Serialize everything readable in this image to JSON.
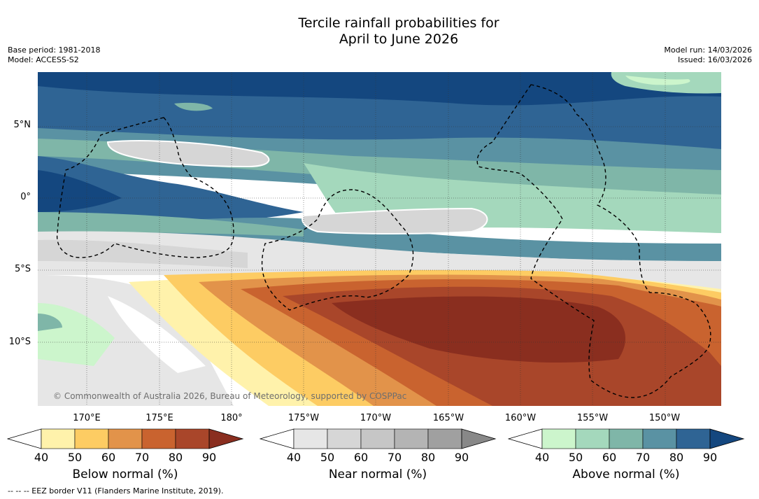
{
  "title": {
    "line1": "Tercile rainfall probabilities for",
    "line2": "April to June 2026"
  },
  "meta": {
    "base_period": "Base period: 1981-2018",
    "model": "Model: ACCESS-S2",
    "model_run": "Model run: 14/03/2026",
    "issued": "Issued: 16/03/2026"
  },
  "lat_labels": [
    "5°N",
    "0°",
    "5°S",
    "10°S"
  ],
  "lon_labels": [
    "170°E",
    "175°E",
    "180°",
    "175°W",
    "170°W",
    "165°W",
    "160°W",
    "155°W",
    "150°W"
  ],
  "copyright": "© Commonwealth of Australia 2026, Bureau of Meteorology, supported by COSPPac",
  "colorbars": [
    {
      "title": "Below normal (%)",
      "ticks": [
        "40",
        "50",
        "60",
        "70",
        "80",
        "90"
      ],
      "colors": [
        "#fff2ab",
        "#fdcc63",
        "#e2934a",
        "#c9632f",
        "#a9462a",
        "#8a2e1f"
      ]
    },
    {
      "title": "Near normal (%)",
      "ticks": [
        "40",
        "50",
        "60",
        "70",
        "80",
        "90"
      ],
      "colors": [
        "#e6e6e6",
        "#d6d6d6",
        "#c6c6c6",
        "#b4b4b4",
        "#a0a0a0",
        "#888888"
      ]
    },
    {
      "title": "Above normal (%)",
      "ticks": [
        "40",
        "50",
        "60",
        "70",
        "80",
        "90"
      ],
      "colors": [
        "#ccf5cc",
        "#a4d8bc",
        "#7fb6a8",
        "#5a92a3",
        "#2f6494",
        "#14477f"
      ]
    }
  ],
  "footer": "--  --  -- EEZ border V11 (Flanders Marine Institute, 2019).",
  "colors": {
    "dark_blue": "#14477f",
    "mid_blue": "#2f6494",
    "teal": "#5a92a3",
    "light_teal": "#7fb6a8",
    "pale_green": "#a4d8bc",
    "mint": "#ccf5cc",
    "grey_light": "#e6e6e6",
    "grey_mid": "#d6d6d6",
    "yellow": "#fff2ab",
    "orange_light": "#fdcc63",
    "orange": "#e2934a",
    "orange_dark": "#c9632f",
    "red_brown": "#a9462a",
    "dark_brown": "#8a2e1f"
  }
}
